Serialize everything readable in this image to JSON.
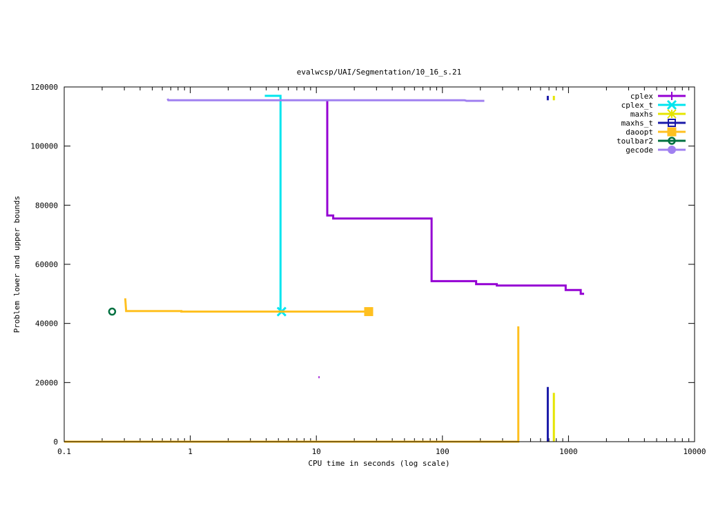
{
  "chart_data": {
    "type": "line",
    "title": "evalwcsp/UAI/Segmentation/10_16_s.21",
    "xlabel": "CPU time in seconds (log scale)",
    "ylabel": "Problem lower and upper bounds",
    "xscale": "log",
    "xlim": [
      0.1,
      10000
    ],
    "ylim": [
      0,
      120000
    ],
    "x_ticks": [
      0.1,
      1,
      10,
      100,
      1000,
      10000
    ],
    "x_tick_labels": [
      "0.1",
      "1",
      "10",
      "100",
      "1000",
      "10000"
    ],
    "y_ticks": [
      0,
      20000,
      40000,
      60000,
      80000,
      100000,
      120000
    ],
    "y_tick_labels": [
      "0",
      "20000",
      "40000",
      "60000",
      "80000",
      "100000",
      "120000"
    ],
    "legend_position": "top-right",
    "series": [
      {
        "name": "cplex",
        "color": "#9400d3",
        "marker": "plus",
        "segments": [
          [
            [
              12.2,
              115500
            ],
            [
              12.2,
              76500
            ],
            [
              13.6,
              76500
            ],
            [
              13.6,
              75500
            ],
            [
              82,
              75500
            ],
            [
              82,
              54300
            ],
            [
              185,
              54300
            ],
            [
              185,
              53300
            ],
            [
              270,
              53300
            ],
            [
              270,
              52800
            ],
            [
              950,
              52800
            ],
            [
              950,
              51300
            ],
            [
              1250,
              51300
            ],
            [
              1250,
              50000
            ],
            [
              1330,
              50000
            ]
          ],
          [
            [
              10.4,
              21800
            ],
            [
              10.6,
              21800
            ]
          ]
        ],
        "markers": []
      },
      {
        "name": "cplex_t",
        "color": "#00e5ee",
        "marker": "cross",
        "segments": [
          [
            [
              3.9,
              117000
            ],
            [
              5.2,
              117000
            ],
            [
              5.2,
              44000
            ]
          ]
        ],
        "markers": [
          [
            5.3,
            44000
          ]
        ]
      },
      {
        "name": "maxhs",
        "color": "#e5e500",
        "marker": "star",
        "segments": [
          [
            [
              765,
              117000
            ],
            [
              765,
              115500
            ]
          ],
          [
            [
              765,
              0
            ],
            [
              765,
              16500
            ]
          ]
        ],
        "markers": []
      },
      {
        "name": "maxhs_t",
        "color": "#1a1aa8",
        "marker": "square-open",
        "segments": [
          [
            [
              685,
              117000
            ],
            [
              685,
              115500
            ]
          ],
          [
            [
              685,
              0
            ],
            [
              685,
              18500
            ]
          ]
        ],
        "markers": []
      },
      {
        "name": "daoopt",
        "color": "#ffc020",
        "marker": "square-filled",
        "segments": [
          [
            [
              0.305,
              48500
            ],
            [
              0.31,
              44200
            ],
            [
              0.85,
              44200
            ],
            [
              0.85,
              44000
            ],
            [
              26,
              44000
            ]
          ],
          [
            [
              0.1,
              0
            ],
            [
              400,
              0
            ],
            [
              400,
              39000
            ]
          ]
        ],
        "markers": [
          [
            26,
            44000
          ]
        ]
      },
      {
        "name": "toulbar2",
        "color": "#007040",
        "marker": "circle-open",
        "segments": [],
        "markers": [
          [
            0.24,
            44000
          ]
        ]
      },
      {
        "name": "gecode",
        "color": "#a080f0",
        "marker": "circle-filled",
        "segments": [
          [
            [
              0.66,
              116000
            ],
            [
              0.67,
              115500
            ],
            [
              150,
              115500
            ],
            [
              155,
              115300
            ],
            [
              215,
              115300
            ]
          ]
        ],
        "markers": []
      }
    ]
  }
}
